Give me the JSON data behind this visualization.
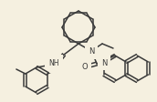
{
  "bg_color": "#f5f0e0",
  "bond_color": "#3a3a3a",
  "lw": 1.1,
  "figsize": [
    1.72,
    1.13
  ],
  "dpi": 100,
  "xlim": [
    0,
    172
  ],
  "ylim": [
    0,
    113
  ]
}
